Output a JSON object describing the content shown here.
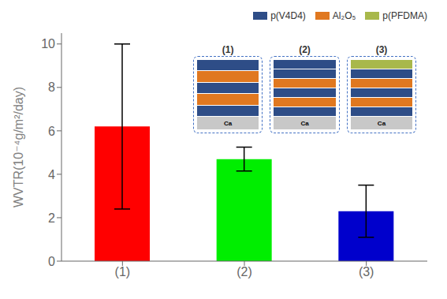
{
  "chart_data": {
    "type": "bar",
    "categories": [
      "(1)",
      "(2)",
      "(3)"
    ],
    "values": [
      6.2,
      4.7,
      2.3
    ],
    "errors": [
      3.8,
      0.55,
      1.2
    ],
    "colors": [
      "#ff0000",
      "#00ee00",
      "#0000cc"
    ],
    "ylabel": "WVTR(10⁻⁴g/m²/day)",
    "ylim": [
      0,
      10.5
    ],
    "yticks": [
      0,
      2,
      4,
      6,
      8,
      10
    ],
    "grid": false,
    "legend": "upper right",
    "legend_entries": [
      {
        "name": "p(V4D4)",
        "color": "#2e4d87"
      },
      {
        "name": "Al₂O₅",
        "color": "#e07820"
      },
      {
        "name": "p(PFDMA)",
        "color": "#a8b84b"
      }
    ],
    "annotations": [
      {
        "text": "(1)",
        "substrate": "Ca",
        "substrate_color": "#c8c8c8",
        "border_color": "#4472c4",
        "layers": [
          "#2e4d87",
          "#e07820",
          "#2e4d87",
          "#e07820",
          "#2e4d87"
        ]
      },
      {
        "text": "(2)",
        "substrate": "Ca",
        "substrate_color": "#c8c8c8",
        "border_color": "#4472c4",
        "layers": [
          "#2e4d87",
          "#e07820",
          "#2e4d87",
          "#e07820",
          "#2e4d87",
          "#2e4d87"
        ]
      },
      {
        "text": "(3)",
        "substrate": "Ca",
        "substrate_color": "#c8c8c8",
        "border_color": "#4472c4",
        "layers": [
          "#2e4d87",
          "#e07820",
          "#2e4d87",
          "#e07820",
          "#2e4d87",
          "#a8b84b"
        ]
      }
    ]
  }
}
